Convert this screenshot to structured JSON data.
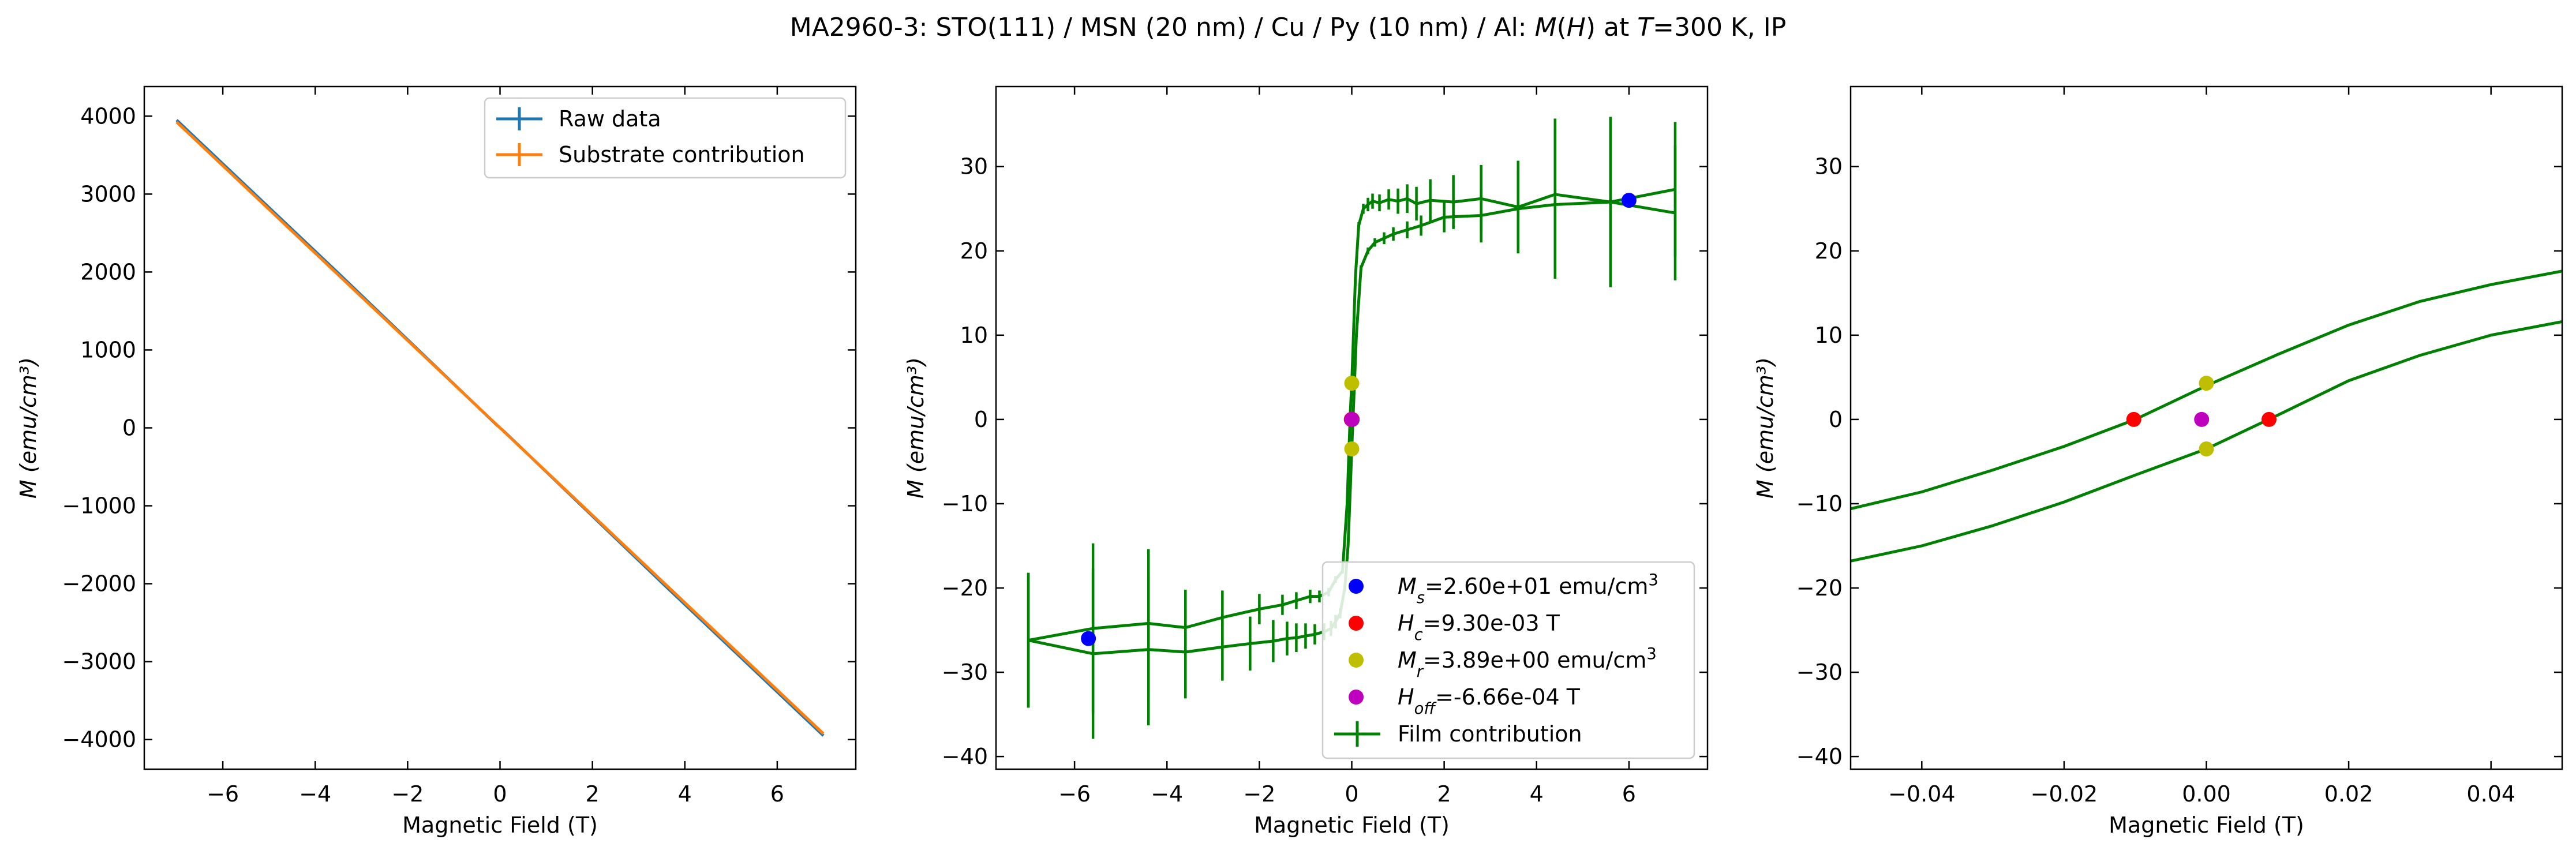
{
  "figure": {
    "title_parts": [
      {
        "text": "MA2960-3: STO(111)  / MSN (20 nm) / Cu / Py (10 nm) / Al: ",
        "italic": false
      },
      {
        "text": "M",
        "italic": true
      },
      {
        "text": "(",
        "italic": false
      },
      {
        "text": "H",
        "italic": true
      },
      {
        "text": ") at ",
        "italic": false
      },
      {
        "text": "T",
        "italic": true
      },
      {
        "text": "=300 K, IP",
        "italic": false
      }
    ]
  },
  "chart_data": [
    {
      "type": "line",
      "xlabel": "Magnetic Field (T)",
      "ylabel": "M (emu/cm³)",
      "xlim": [
        -7.7,
        7.7
      ],
      "ylim": [
        -4380,
        4380
      ],
      "xticks": [
        -6,
        -4,
        -2,
        0,
        2,
        4,
        6
      ],
      "xtick_labels": [
        "−6",
        "−4",
        "−2",
        "0",
        "2",
        "4",
        "6"
      ],
      "yticks": [
        -4000,
        -3000,
        -2000,
        -1000,
        0,
        1000,
        2000,
        3000,
        4000
      ],
      "ytick_labels": [
        "−4000",
        "−3000",
        "−2000",
        "−1000",
        "0",
        "1000",
        "2000",
        "3000",
        "4000"
      ],
      "legend_position": "top-right",
      "series": [
        {
          "name": "Raw data",
          "color": "#1f77b4",
          "x": [
            -7,
            -3.5,
            -0.1,
            0,
            0.1,
            3.5,
            7
          ],
          "y": [
            3950,
            1985,
            52,
            0,
            -52,
            -1985,
            -3950
          ]
        },
        {
          "name": "Substrate contribution",
          "color": "#ff7f0e",
          "x": [
            -7,
            7
          ],
          "y": [
            3925,
            -3925
          ]
        }
      ]
    },
    {
      "type": "line",
      "xlabel": "Magnetic Field (T)",
      "ylabel": "M (emu/cm³)",
      "xlim": [
        -7.7,
        7.7
      ],
      "ylim": [
        -41.5,
        39.5
      ],
      "xticks": [
        -6,
        -4,
        -2,
        0,
        2,
        4,
        6
      ],
      "xtick_labels": [
        "−6",
        "−4",
        "−2",
        "0",
        "2",
        "4",
        "6"
      ],
      "yticks": [
        -40,
        -30,
        -20,
        -10,
        0,
        10,
        20,
        30
      ],
      "ytick_labels": [
        "−40",
        "−30",
        "−20",
        "−10",
        "0",
        "10",
        "20",
        "30"
      ],
      "legend_position": "lower-right",
      "series": [
        {
          "name": "Film contribution",
          "color": "#008000",
          "x": [
            7,
            5.6,
            4.4,
            3.6,
            2.8,
            2.2,
            1.7,
            1.4,
            1.2,
            1.0,
            0.8,
            0.6,
            0.45,
            0.35,
            0.25,
            0.15,
            0.08,
            0.03,
            0.0,
            -0.03,
            -0.06,
            -0.1,
            -0.2,
            -0.35,
            -0.5,
            -0.7,
            -0.9,
            -1.2,
            -1.5,
            -2.0,
            -2.8,
            -3.6,
            -4.4,
            -5.6,
            -7
          ],
          "y": [
            27.3,
            25.8,
            26.7,
            25.2,
            26.2,
            25.8,
            26.0,
            25.6,
            26.2,
            25.9,
            26.1,
            25.7,
            25.9,
            25.5,
            25.0,
            23.0,
            17.0,
            9.0,
            4.3,
            1.0,
            -3.5,
            -10.0,
            -18.0,
            -19.0,
            -20.5,
            -21.0,
            -21.0,
            -21.5,
            -22.0,
            -22.5,
            -23.5,
            -24.7,
            -24.2,
            -24.8,
            -26.2
          ],
          "yerr": [
            8.0,
            10.1,
            9.0,
            5.5,
            4.0,
            3.2,
            2.5,
            2.0,
            1.7,
            1.5,
            1.2,
            1.0,
            0.9,
            0.8,
            0.6,
            0.4,
            0.2,
            0.1,
            0.1,
            0.1,
            0.2,
            0.2,
            0.3,
            0.4,
            0.5,
            0.7,
            0.8,
            1.0,
            1.2,
            1.8,
            3.2,
            4.5,
            8.8,
            10.1,
            8.0
          ]
        },
        {
          "name": "",
          "color": "#008000",
          "x": [
            -7,
            -5.6,
            -4.4,
            -3.6,
            -2.8,
            -2.2,
            -1.7,
            -1.4,
            -1.2,
            -1.0,
            -0.8,
            -0.6,
            -0.45,
            -0.35,
            -0.25,
            -0.15,
            -0.08,
            -0.03,
            0.0,
            0.03,
            0.06,
            0.1,
            0.2,
            0.35,
            0.5,
            0.7,
            0.9,
            1.2,
            1.5,
            2.0,
            2.8,
            3.6,
            4.4,
            5.6,
            7
          ],
          "y": [
            -26.2,
            -27.8,
            -27.3,
            -27.6,
            -27.0,
            -26.6,
            -26.3,
            -26.0,
            -25.9,
            -25.7,
            -25.5,
            -25.2,
            -24.8,
            -24.0,
            -23.0,
            -20.0,
            -15.0,
            -8.0,
            -3.5,
            0.5,
            4.5,
            10.0,
            18.0,
            20.0,
            21.0,
            21.5,
            22.0,
            22.5,
            23.0,
            24.0,
            24.2,
            25.0,
            25.5,
            25.8,
            24.5
          ],
          "yerr": [
            8.0,
            10.1,
            9.0,
            5.5,
            4.0,
            3.2,
            2.5,
            2.0,
            1.7,
            1.5,
            1.2,
            1.0,
            0.9,
            0.8,
            0.6,
            0.4,
            0.2,
            0.1,
            0.1,
            0.1,
            0.2,
            0.2,
            0.3,
            0.4,
            0.5,
            0.7,
            0.8,
            1.0,
            1.2,
            1.8,
            3.2,
            4.5,
            8.8,
            10.1,
            8.0
          ]
        }
      ],
      "markers": [
        {
          "label_parts": [
            {
              "text": "M",
              "style": "italic"
            },
            {
              "text": "s",
              "style": "sub"
            },
            {
              "text": "=2.60e+01 emu/cm",
              "style": ""
            },
            {
              "text": "3",
              "style": "sup"
            }
          ],
          "color": "#0000ff",
          "points": [
            [
              6.0,
              26.0
            ],
            [
              -5.7,
              -26.0
            ]
          ]
        },
        {
          "label_parts": [
            {
              "text": "H",
              "style": "italic"
            },
            {
              "text": "c",
              "style": "sub"
            },
            {
              "text": "=9.30e-03 T",
              "style": ""
            }
          ],
          "color": "#ff0000",
          "points": [
            [
              -0.0102,
              0
            ],
            [
              0.0088,
              0
            ]
          ]
        },
        {
          "label_parts": [
            {
              "text": "M",
              "style": "italic"
            },
            {
              "text": "r",
              "style": "sub"
            },
            {
              "text": "=3.89e+00 emu/cm",
              "style": ""
            },
            {
              "text": "3",
              "style": "sup"
            }
          ],
          "color": "#bfbf00",
          "points": [
            [
              0.0,
              4.3
            ],
            [
              0.0,
              -3.5
            ]
          ]
        },
        {
          "label_parts": [
            {
              "text": "H",
              "style": "italic"
            },
            {
              "text": "off",
              "style": "sub"
            },
            {
              "text": "=-6.66e-04 T",
              "style": ""
            }
          ],
          "color": "#bf00bf",
          "points": [
            [
              -0.00067,
              0
            ]
          ]
        }
      ],
      "errorbar_legend": "Film contribution"
    },
    {
      "type": "line",
      "xlabel": "Magnetic Field (T)",
      "ylabel": "M (emu/cm³)",
      "xlim": [
        -0.05,
        0.05
      ],
      "ylim": [
        -41.5,
        39.5
      ],
      "xticks": [
        -0.04,
        -0.02,
        0.0,
        0.02,
        0.04
      ],
      "xtick_labels": [
        "−0.04",
        "−0.02",
        "0.00",
        "0.02",
        "0.04"
      ],
      "yticks": [
        -40,
        -30,
        -20,
        -10,
        0,
        10,
        20,
        30
      ],
      "ytick_labels": [
        "−40",
        "−30",
        "−20",
        "−10",
        "0",
        "10",
        "20",
        "30"
      ],
      "series": [
        {
          "name": "",
          "color": "#008000",
          "x": [
            -0.05,
            -0.04,
            -0.03,
            -0.02,
            -0.01,
            0.0,
            0.01,
            0.02,
            0.03,
            0.04,
            0.05
          ],
          "y": [
            -10.6,
            -8.6,
            -6.0,
            -3.2,
            0.0,
            4.0,
            7.7,
            11.2,
            14.0,
            16.0,
            17.6
          ]
        },
        {
          "name": "",
          "color": "#008000",
          "x": [
            -0.05,
            -0.04,
            -0.03,
            -0.02,
            -0.01,
            0.0,
            0.01,
            0.02,
            0.03,
            0.04,
            0.05
          ],
          "y": [
            -16.8,
            -15.0,
            -12.6,
            -9.8,
            -6.6,
            -3.5,
            0.5,
            4.6,
            7.6,
            10.0,
            11.6
          ]
        }
      ],
      "markers": [
        {
          "color": "#ff0000",
          "points": [
            [
              -0.0102,
              0
            ],
            [
              0.0088,
              0
            ]
          ]
        },
        {
          "color": "#bfbf00",
          "points": [
            [
              0.0,
              4.3
            ],
            [
              0.0,
              -3.5
            ]
          ]
        },
        {
          "color": "#bf00bf",
          "points": [
            [
              -0.00067,
              0
            ]
          ]
        }
      ]
    }
  ]
}
